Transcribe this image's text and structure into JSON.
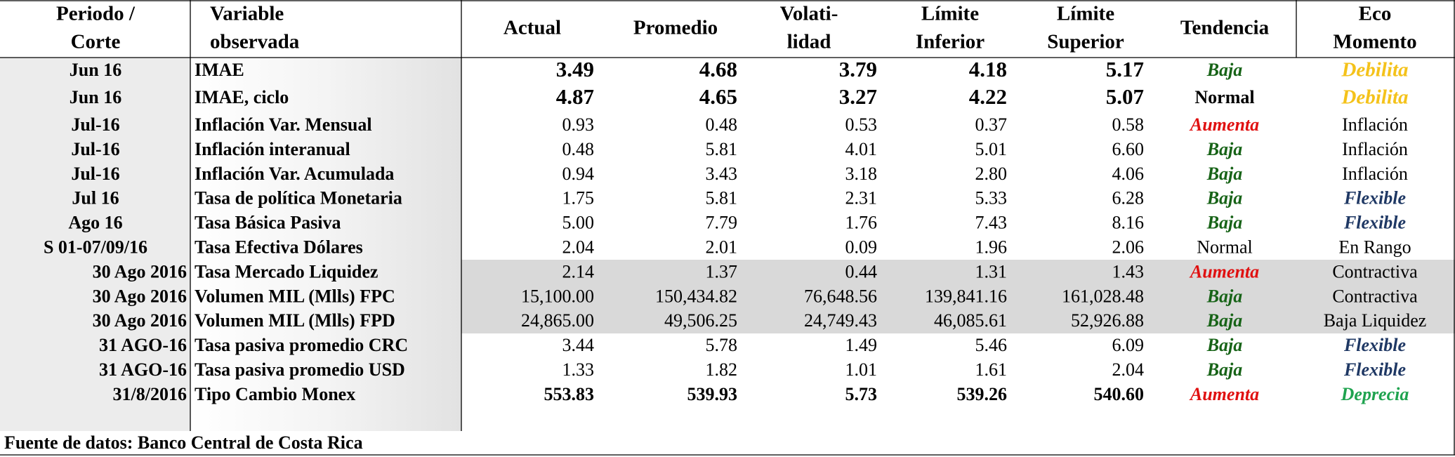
{
  "header": {
    "columns": [
      [
        "Periodo /",
        "Corte"
      ],
      [
        "Variable",
        "observada"
      ],
      [
        "Actual"
      ],
      [
        "Promedio"
      ],
      [
        "Volati-",
        "lidad"
      ],
      [
        "Límite",
        "Inferior"
      ],
      [
        "Límite",
        "Superior"
      ],
      [
        "Tendencia"
      ],
      [
        "Eco",
        "Momento"
      ]
    ]
  },
  "table": {
    "rows": [
      [
        "Jun 16",
        "IMAE",
        "3.49",
        "4.68",
        "3.79",
        "4.18",
        "5.17",
        "Baja",
        "Debilita"
      ],
      [
        "Jun 16",
        "IMAE, ciclo",
        "4.87",
        "4.65",
        "3.27",
        "4.22",
        "5.07",
        "Normal",
        "Debilita"
      ],
      [
        "Jul-16",
        "Inflación Var. Mensual",
        "0.93",
        "0.48",
        "0.53",
        "0.37",
        "0.58",
        "Aumenta",
        "Inflación"
      ],
      [
        "Jul-16",
        "Inflación interanual",
        "0.48",
        "5.81",
        "4.01",
        "5.01",
        "6.60",
        "Baja",
        "Inflación"
      ],
      [
        "Jul-16",
        "Inflación Var. Acumulada",
        "0.94",
        "3.43",
        "3.18",
        "2.80",
        "4.06",
        "Baja",
        "Inflación"
      ],
      [
        "Jul 16",
        "Tasa de política Monetaria",
        "1.75",
        "5.81",
        "2.31",
        "5.33",
        "6.28",
        "Baja",
        "Flexible"
      ],
      [
        "Ago 16",
        "Tasa Básica Pasiva",
        "5.00",
        "7.79",
        "1.76",
        "7.43",
        "8.16",
        "Baja",
        "Flexible"
      ],
      [
        "S 01-07/09/16",
        "Tasa Efectiva Dólares",
        "2.04",
        "2.01",
        "0.09",
        "1.96",
        "2.06",
        "Normal",
        "En Rango"
      ],
      [
        "30 Ago 2016",
        "Tasa Mercado Liquidez",
        "2.14",
        "1.37",
        "0.44",
        "1.31",
        "1.43",
        "Aumenta",
        "Contractiva"
      ],
      [
        "30 Ago 2016",
        "Volumen MIL (Mlls) FPC",
        "15,100.00",
        "150,434.82",
        "76,648.56",
        "139,841.16",
        "161,028.48",
        "Baja",
        "Contractiva"
      ],
      [
        "30 Ago 2016",
        "Volumen MIL (Mlls) FPD",
        "24,865.00",
        "49,506.25",
        "24,749.43",
        "46,085.61",
        "52,926.88",
        "Baja",
        "Baja Liquidez"
      ],
      [
        "31 AGO-16",
        "Tasa pasiva promedio CRC",
        "3.44",
        "5.78",
        "1.49",
        "5.46",
        "6.09",
        "Baja",
        "Flexible"
      ],
      [
        "31 AGO-16",
        "Tasa pasiva promedio USD",
        "1.33",
        "1.82",
        "1.01",
        "1.61",
        "2.04",
        "Baja",
        "Flexible"
      ],
      [
        "31/8/2016",
        "Tipo Cambio Monex",
        "553.83",
        "539.93",
        "5.73",
        "539.26",
        "540.60",
        "Aumenta",
        "Deprecia"
      ]
    ]
  },
  "footer": {
    "source": "Fuente de datos: Banco Central de Costa Rica"
  }
}
